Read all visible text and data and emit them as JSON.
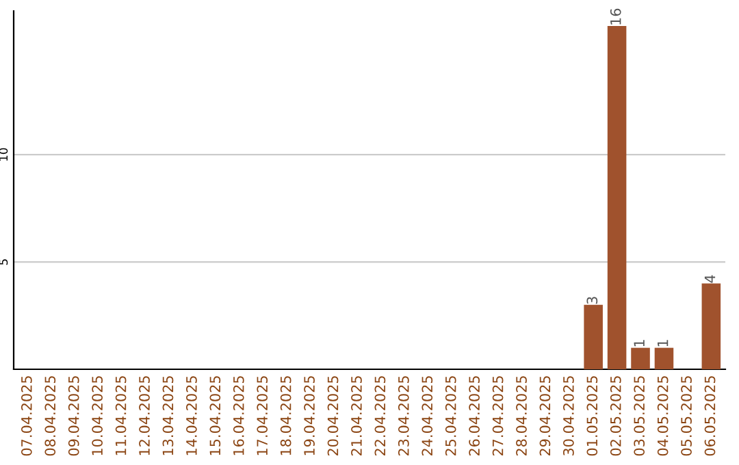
{
  "chart_data": {
    "type": "bar",
    "categories": [
      "07.04.2025",
      "08.04.2025",
      "09.04.2025",
      "10.04.2025",
      "11.04.2025",
      "12.04.2025",
      "13.04.2025",
      "14.04.2025",
      "15.04.2025",
      "16.04.2025",
      "17.04.2025",
      "18.04.2025",
      "19.04.2025",
      "20.04.2025",
      "21.04.2025",
      "22.04.2025",
      "23.04.2025",
      "24.04.2025",
      "25.04.2025",
      "26.04.2025",
      "27.04.2025",
      "28.04.2025",
      "29.04.2025",
      "30.04.2025",
      "01.05.2025",
      "02.05.2025",
      "03.05.2025",
      "04.05.2025",
      "05.05.2025",
      "06.05.2025"
    ],
    "values": [
      0,
      0,
      0,
      0,
      0,
      0,
      0,
      0,
      0,
      0,
      0,
      0,
      0,
      0,
      0,
      0,
      0,
      0,
      0,
      0,
      0,
      0,
      0,
      0,
      3,
      16,
      1,
      1,
      0,
      4
    ],
    "value_labels": [
      null,
      null,
      null,
      null,
      null,
      null,
      null,
      null,
      null,
      null,
      null,
      null,
      null,
      null,
      null,
      null,
      null,
      null,
      null,
      null,
      null,
      null,
      null,
      null,
      "3",
      "16",
      "1",
      "1",
      null,
      "4"
    ],
    "color": "#a0522d",
    "ylim": [
      0,
      16.7
    ],
    "yticks": [
      5,
      10
    ],
    "grid": "y",
    "legend": false
  }
}
